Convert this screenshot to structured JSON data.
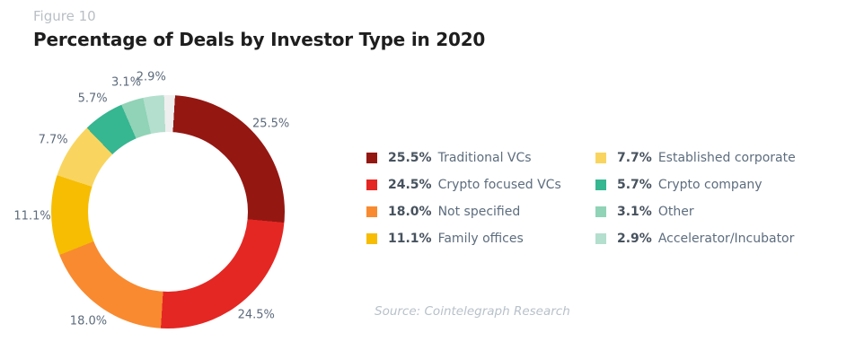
{
  "header": {
    "figure_label": "Figure 10",
    "title": "Percentage of Deals by Investor Type in 2020"
  },
  "footer": {
    "source": "Source: Cointelegraph Research"
  },
  "chart_data": {
    "type": "pie",
    "subtype": "donut",
    "title": "Percentage of Deals by Investor Type in 2020",
    "start_angle_deg": 3.5,
    "legend_position": "right",
    "slices": [
      {
        "label": "Traditional VCs",
        "value": 25.5,
        "pct_label": "25.5%",
        "color": "#941712"
      },
      {
        "label": "Crypto focused VCs",
        "value": 24.5,
        "pct_label": "24.5%",
        "color": "#e42723"
      },
      {
        "label": "Not specified",
        "value": 18.0,
        "pct_label": "18.0%",
        "color": "#f98a30"
      },
      {
        "label": "Family offices",
        "value": 11.1,
        "pct_label": "11.1%",
        "color": "#f6bd02"
      },
      {
        "label": "Established corporate",
        "value": 7.7,
        "pct_label": "7.7%",
        "color": "#f9d55f"
      },
      {
        "label": "Crypto company",
        "value": 5.7,
        "pct_label": "5.7%",
        "color": "#36b691"
      },
      {
        "label": "Other",
        "value": 3.1,
        "pct_label": "3.1%",
        "color": "#90d3b6"
      },
      {
        "label": "Accelerator/Incubator",
        "value": 2.9,
        "pct_label": "2.9%",
        "color": "#b4dfce"
      },
      {
        "label": "",
        "value": 1.5,
        "pct_label": "",
        "color": "#efefef"
      }
    ]
  },
  "legend": {
    "columns": [
      {
        "items": [
          {
            "pct": "25.5%",
            "label": "Traditional VCs",
            "color": "#941712"
          },
          {
            "pct": "24.5%",
            "label": "Crypto focused VCs",
            "color": "#e42723"
          },
          {
            "pct": "18.0%",
            "label": "Not specified",
            "color": "#f98a30"
          },
          {
            "pct": "11.1%",
            "label": "Family offices",
            "color": "#f6bd02"
          }
        ]
      },
      {
        "items": [
          {
            "pct": "7.7%",
            "label": "Established corporate",
            "color": "#f9d55f"
          },
          {
            "pct": "5.7%",
            "label": "Crypto company",
            "color": "#36b691"
          },
          {
            "pct": "3.1%",
            "label": "Other",
            "color": "#90d3b6"
          },
          {
            "pct": "2.9%",
            "label": "Accelerator/Incubator",
            "color": "#b4dfce"
          }
        ]
      }
    ]
  }
}
